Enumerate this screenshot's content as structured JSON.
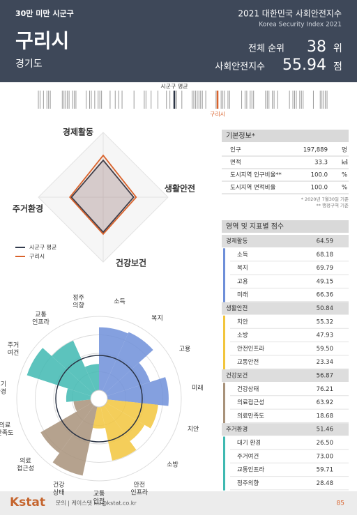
{
  "header": {
    "category": "30만 미만 시군구",
    "report_title": "2021 대한민국 사회안전지수",
    "report_subtitle": "Korea Security Index 2021",
    "city": "구리시",
    "province": "경기도",
    "rank_label": "전체 순위",
    "rank_value": 38,
    "rank_unit": "위",
    "score_label": "사회안전지수",
    "score_value": 55.94,
    "score_unit": "점"
  },
  "barcode": {
    "average_label": "시군구 평균",
    "city_label": "구리시"
  },
  "chart_data": [
    {
      "type": "radar",
      "categories": [
        "경제활동",
        "생활안전",
        "건강보건",
        "주거환경"
      ],
      "series": [
        {
          "name": "시군구 평균",
          "color": "#333b4d",
          "values": [
            57,
            47,
            54,
            49
          ]
        },
        {
          "name": "구리시",
          "color": "#d9622b",
          "values": [
            64.59,
            50.84,
            56.87,
            51.46
          ],
          "value_labels": [
            "64.59",
            "50.84",
            "56.87",
            "51.46"
          ]
        }
      ],
      "rlim": [
        0,
        100
      ],
      "rticks": [
        20,
        40,
        60,
        80,
        100
      ]
    },
    {
      "type": "polar-bar",
      "rlim": [
        0,
        80
      ],
      "rticks": [
        20,
        40,
        60,
        80
      ],
      "series": [
        {
          "name": "경제활동",
          "color": "#6e8fd9",
          "categories": [
            "소득",
            "복지",
            "고용",
            "미래"
          ],
          "labels": [
            [
              "소득"
            ],
            [
              "복지"
            ],
            [
              "고용"
            ],
            [
              "미래"
            ]
          ],
          "values": [
            68.18,
            69.79,
            49.15,
            66.36
          ],
          "value_labels": [
            "68.18",
            "69.79",
            "49.15",
            "66.36"
          ]
        },
        {
          "name": "생활안전",
          "color": "#f2c53d",
          "categories": [
            "치안",
            "소방",
            "안전인프라",
            "교통안전"
          ],
          "labels": [
            [
              "치안"
            ],
            [
              "소방"
            ],
            [
              "안전",
              "인프라"
            ],
            [
              "교통",
              "안전"
            ]
          ],
          "values": [
            55.32,
            47.93,
            59.5,
            23.34
          ],
          "value_labels": [
            "55.32",
            "47.93",
            "59.50",
            "23.34"
          ]
        },
        {
          "name": "건강보건",
          "color": "#a8927a",
          "categories": [
            "건강상태",
            "의료접근성",
            "의료만족도"
          ],
          "labels": [
            [
              "건강",
              "상태"
            ],
            [
              "의료",
              "접근성"
            ],
            [
              "의료",
              "만족도"
            ]
          ],
          "values": [
            76.21,
            63.92,
            18.68
          ],
          "value_labels": [
            "76.21",
            "63.92",
            "18.68"
          ]
        },
        {
          "name": "주거환경",
          "color": "#3fb9b1",
          "categories": [
            "대기 환경",
            "주거여건",
            "교통인프라",
            "정주의향"
          ],
          "labels": [
            [
              "대기",
              "환경"
            ],
            [
              "주거",
              "여건"
            ],
            [
              "교통",
              "인프라"
            ],
            [
              "정주",
              "의향"
            ]
          ],
          "values": [
            26.5,
            73,
            59.71,
            28.48
          ],
          "value_labels": [
            "26.50",
            "73.00",
            "59.71",
            "28.48"
          ]
        }
      ]
    }
  ],
  "info": {
    "title": "기본정보*",
    "rows": [
      [
        "인구",
        "197,889",
        "명"
      ],
      [
        "면적",
        "33.3",
        "㎢"
      ],
      [
        "도시지역 인구비율**",
        "100.0",
        "%"
      ],
      [
        "도시지역 면적비율",
        "100.0",
        "%"
      ]
    ],
    "notes": [
      "* 2020년 7월30일 기준",
      "** 행정구역 기준"
    ]
  },
  "scores_title": "영역 및 지표별 점수",
  "footer": {
    "logo": "Kstat",
    "contact": "문의 | 케이스탯 ksi@kstat.co.kr",
    "page": "85"
  }
}
